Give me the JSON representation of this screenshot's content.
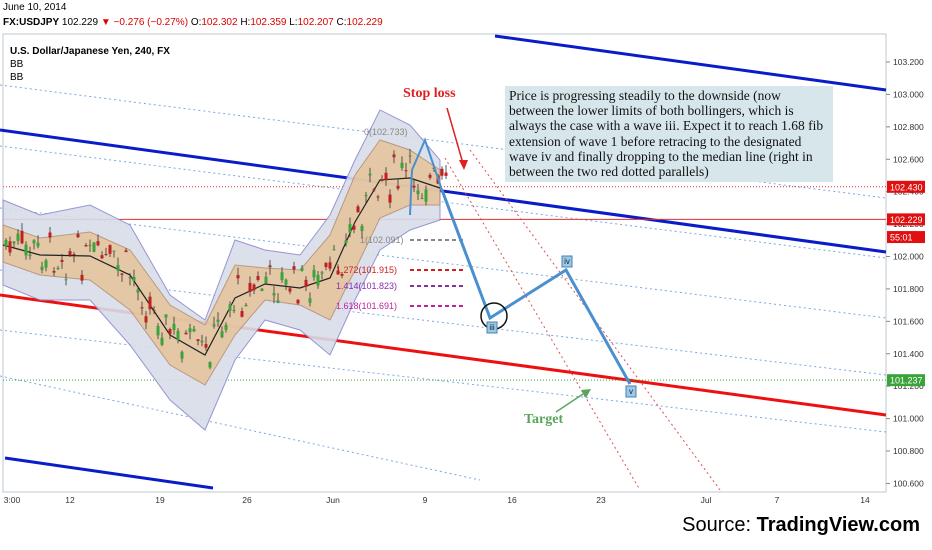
{
  "header": {
    "date": "June 10, 2014",
    "symbol": "FX:USDJPY",
    "last": "102.229",
    "change": "−0.276 (−0.27%)",
    "open_label": "O:",
    "open": "102.302",
    "high_label": "H:",
    "high": "102.359",
    "low_label": "L:",
    "low": "102.207",
    "close_label": "C:",
    "close": "102.229"
  },
  "indicators": [
    "BB",
    "BB"
  ],
  "chart_data": {
    "type": "candlestick",
    "title": "U.S. Dollar/Japanese Yen, 240, FX",
    "ylim": [
      100.6,
      103.3
    ],
    "y_ticks": [
      "103.200",
      "103.000",
      "102.800",
      "102.600",
      "102.400",
      "102.200",
      "102.000",
      "101.800",
      "101.600",
      "101.400",
      "101.200",
      "101.000",
      "100.800",
      "100.600"
    ],
    "x_ticks": [
      "3:00",
      "12",
      "19",
      "26",
      "Jun",
      "9",
      "16",
      "23",
      "Jul",
      "7",
      "14"
    ],
    "price_labels": [
      {
        "text": "102.430",
        "value": 102.43,
        "color": "#e01010"
      },
      {
        "text": "102.229",
        "value": 102.229,
        "color": "#e01010"
      },
      {
        "text": "55:01",
        "value": 102.12,
        "color": "#e01010"
      },
      {
        "text": "101.237",
        "value": 101.237,
        "color": "#3aa43a"
      }
    ],
    "fib_labels": [
      {
        "text": "0(102.733)",
        "value": 102.733,
        "color": "#888888"
      },
      {
        "text": "1(102.091)",
        "value": 102.091,
        "color": "#888888"
      },
      {
        "text": "1.272(101.915)",
        "value": 101.915,
        "color": "#d02020"
      },
      {
        "text": "1.414(101.823)",
        "value": 101.823,
        "color": "#8a2bb0"
      },
      {
        "text": "1.618(101.691)",
        "value": 101.691,
        "color": "#c020a0"
      }
    ],
    "wave_labels": [
      "iii",
      "iv",
      "v"
    ],
    "projection_path": [
      {
        "label": "iii",
        "value": 101.62
      },
      {
        "label": "iv",
        "value": 101.92
      },
      {
        "label": "v",
        "value": 101.237
      }
    ]
  },
  "annotations": {
    "stop_loss": "Stop loss",
    "target": "Target",
    "note": "Price is progressing steadily to the downside (now between the lower limits of both bollingers, which is always the case with a wave iii. Expect it to reach 1.68 fib extension of wave 1 before retracing to the designated wave iv and finally dropping to the median line (right in between the two red dotted parallels)"
  },
  "colors": {
    "channel": "#0a1cc8",
    "median": "#ee1010",
    "projection": "#4a90d0",
    "bb_fill": "#d8dde8",
    "bb_inner": "#e8c090"
  },
  "source": {
    "prefix": "Source: ",
    "brand": "TradingView.com"
  }
}
